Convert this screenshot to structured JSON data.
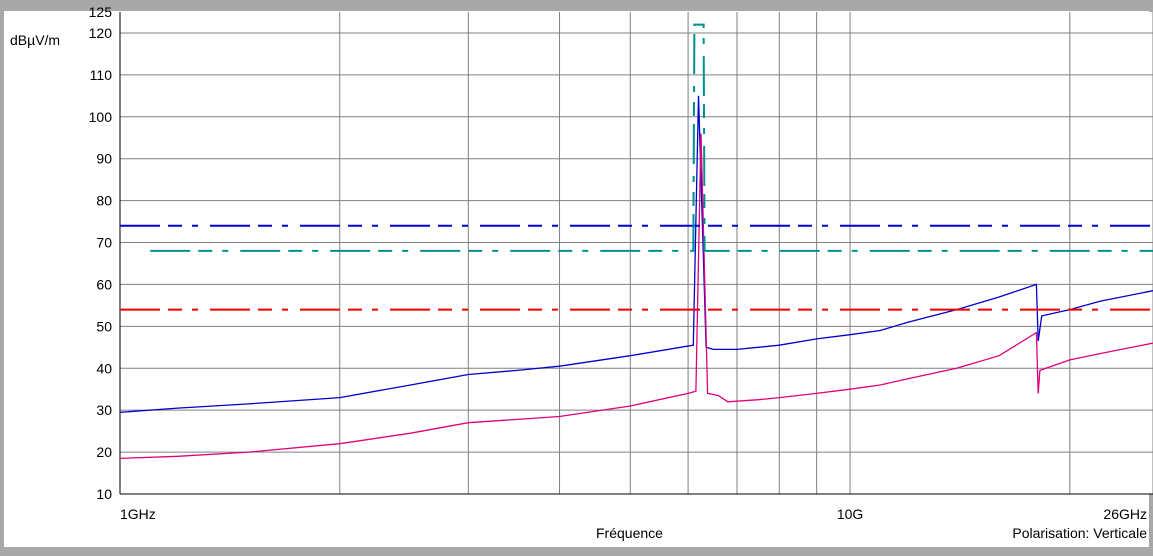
{
  "chart_data": {
    "type": "line",
    "title": "",
    "ylabel": "dBµV/m",
    "xlabel": "Fréquence",
    "note": "Polarisation: Verticale",
    "xscale": "log",
    "xlim_ghz": [
      1,
      26
    ],
    "ylim": [
      10,
      125
    ],
    "y_ticks": [
      10,
      20,
      30,
      40,
      50,
      60,
      70,
      80,
      90,
      100,
      110,
      120,
      125
    ],
    "x_tick_labels": [
      {
        "x": 1,
        "label": "1GHz"
      },
      {
        "x": 10,
        "label": "10G"
      },
      {
        "x": 26,
        "label": "26GHz"
      }
    ],
    "x_grid_ghz": [
      1,
      2,
      3,
      4,
      5,
      6,
      7,
      8,
      9,
      10,
      20,
      26
    ],
    "grid": true,
    "series": [
      {
        "key": "peak",
        "color": "#0000cc",
        "points": [
          [
            1,
            29.5
          ],
          [
            1.2,
            30.5
          ],
          [
            1.5,
            31.5
          ],
          [
            2,
            33
          ],
          [
            2.5,
            36
          ],
          [
            3,
            38.5
          ],
          [
            3.5,
            39.5
          ],
          [
            4,
            40.5
          ],
          [
            5,
            43
          ],
          [
            6.1,
            45.5
          ],
          [
            6.2,
            105
          ],
          [
            6.35,
            45
          ],
          [
            6.5,
            44.5
          ],
          [
            7,
            44.5
          ],
          [
            8,
            45.5
          ],
          [
            9,
            47
          ],
          [
            10,
            48
          ],
          [
            11,
            49
          ],
          [
            12,
            51
          ],
          [
            14,
            54
          ],
          [
            16,
            57
          ],
          [
            18,
            60
          ],
          [
            18.1,
            46.5
          ],
          [
            18.3,
            52.5
          ],
          [
            20,
            54
          ],
          [
            22,
            56
          ],
          [
            26,
            58.5
          ]
        ]
      },
      {
        "key": "average",
        "color": "#e0007a",
        "points": [
          [
            1,
            18.5
          ],
          [
            1.2,
            19
          ],
          [
            1.5,
            20
          ],
          [
            2,
            22
          ],
          [
            2.5,
            24.5
          ],
          [
            3,
            27
          ],
          [
            4,
            28.5
          ],
          [
            5,
            31
          ],
          [
            6,
            34
          ],
          [
            6.15,
            34.5
          ],
          [
            6.25,
            96
          ],
          [
            6.38,
            34
          ],
          [
            6.6,
            33.5
          ],
          [
            6.8,
            32
          ],
          [
            7.5,
            32.5
          ],
          [
            8,
            33
          ],
          [
            9,
            34
          ],
          [
            10,
            35
          ],
          [
            11,
            36
          ],
          [
            12,
            37.5
          ],
          [
            14,
            40
          ],
          [
            16,
            43
          ],
          [
            18,
            48.5
          ],
          [
            18.1,
            34
          ],
          [
            18.2,
            39.5
          ],
          [
            20,
            42
          ],
          [
            22,
            43.5
          ],
          [
            26,
            46
          ]
        ]
      },
      {
        "key": "limit-peak",
        "color": "#0000cc",
        "dashed": true,
        "points": [
          [
            1,
            74
          ],
          [
            26,
            74
          ]
        ]
      },
      {
        "key": "limit-band",
        "color": "#009090",
        "dashed": true,
        "points": [
          [
            1.1,
            68
          ],
          [
            5.8,
            68
          ],
          [
            5.82,
            68
          ],
          [
            6.1,
            68
          ],
          [
            6.12,
            122
          ],
          [
            6.3,
            122
          ],
          [
            6.32,
            68
          ],
          [
            26,
            68
          ]
        ]
      },
      {
        "key": "limit-average",
        "color": "#ee0000",
        "dashed": true,
        "points": [
          [
            1,
            54
          ],
          [
            26,
            54
          ]
        ]
      }
    ]
  }
}
